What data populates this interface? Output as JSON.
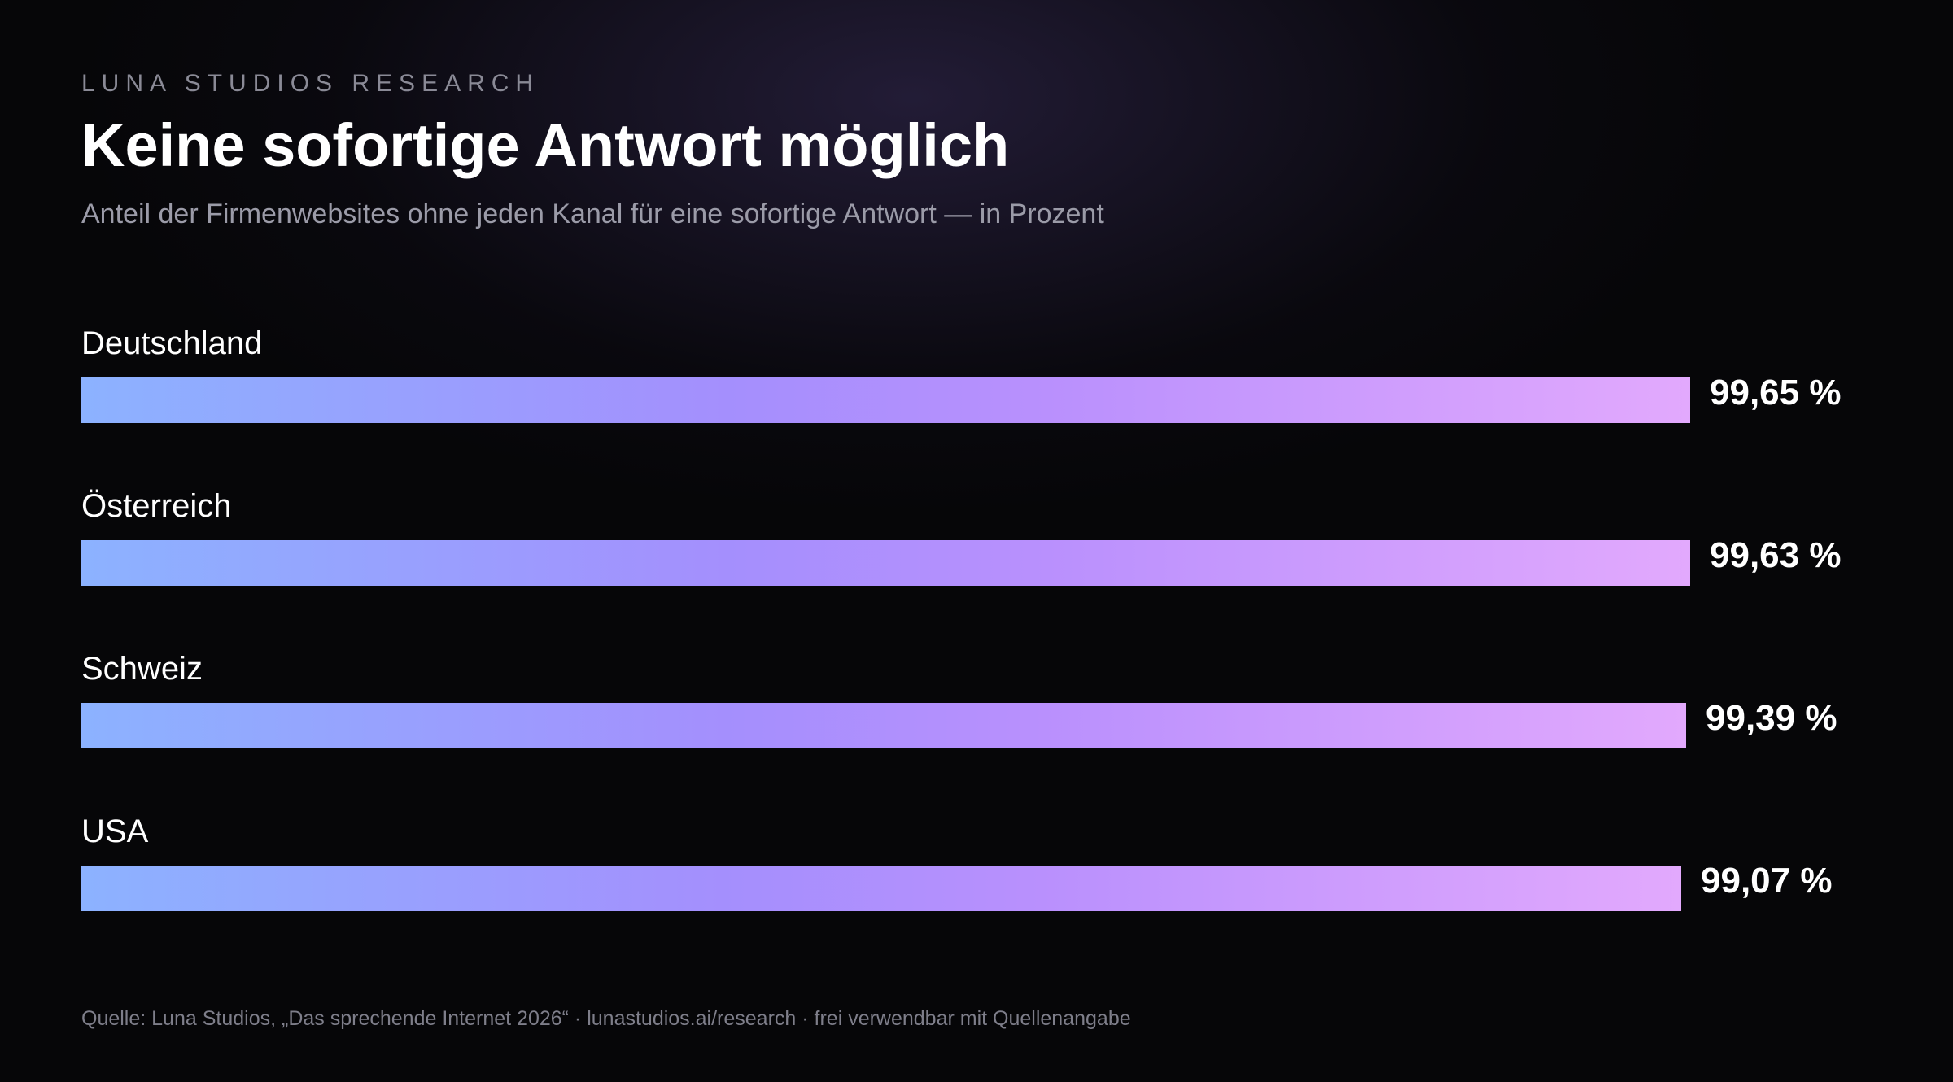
{
  "header": {
    "brand": "LUNA STUDIOS RESEARCH",
    "title": "Keine sofortige Antwort möglich",
    "subtitle": "Anteil der Firmenwebsites ohne jeden Kanal für eine sofortige Antwort — in Prozent"
  },
  "chart_data": {
    "type": "bar",
    "orientation": "horizontal",
    "title": "Keine sofortige Antwort möglich",
    "subtitle": "Anteil der Firmenwebsites ohne jeden Kanal für eine sofortige Antwort — in Prozent",
    "categories": [
      "Deutschland",
      "Österreich",
      "Schweiz",
      "USA"
    ],
    "values": [
      99.65,
      99.63,
      99.39,
      99.07
    ],
    "value_labels": [
      "99,65 %",
      "99,63 %",
      "99,39 %",
      "99,07 %"
    ],
    "xlim": [
      0,
      100
    ],
    "grid": false,
    "legend": "none",
    "colors": {
      "gradient_start": "#8cb2ff",
      "gradient_mid": "#b990fd",
      "gradient_end": "#e2a9fd"
    }
  },
  "footer": {
    "source": "Quelle: Luna Studios, „Das sprechende Internet 2026“ · lunastudios.ai/research · frei verwendbar mit Quellenangabe"
  }
}
